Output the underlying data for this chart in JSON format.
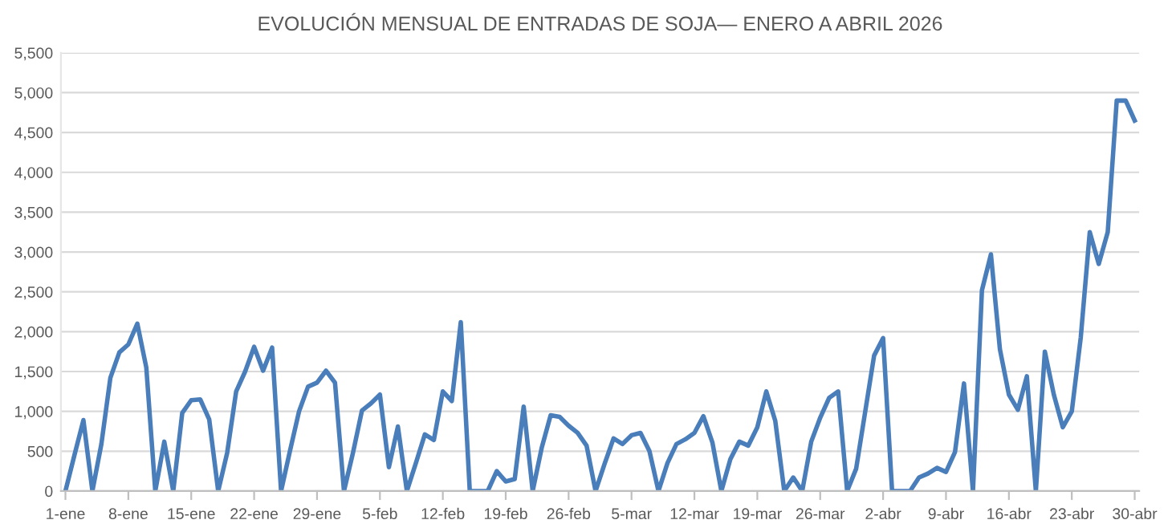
{
  "chart_data": {
    "type": "line",
    "title": "EVOLUCIÓN MENSUAL DE ENTRADAS DE SOJA— ENERO A ABRIL 2026",
    "x": [
      "2026-01-01",
      "2026-01-02",
      "2026-01-03",
      "2026-01-04",
      "2026-01-05",
      "2026-01-06",
      "2026-01-07",
      "2026-01-08",
      "2026-01-09",
      "2026-01-10",
      "2026-01-11",
      "2026-01-12",
      "2026-01-13",
      "2026-01-14",
      "2026-01-15",
      "2026-01-16",
      "2026-01-17",
      "2026-01-18",
      "2026-01-19",
      "2026-01-20",
      "2026-01-21",
      "2026-01-22",
      "2026-01-23",
      "2026-01-24",
      "2026-01-25",
      "2026-01-26",
      "2026-01-27",
      "2026-01-28",
      "2026-01-29",
      "2026-01-30",
      "2026-01-31",
      "2026-02-01",
      "2026-02-02",
      "2026-02-03",
      "2026-02-04",
      "2026-02-05",
      "2026-02-06",
      "2026-02-07",
      "2026-02-08",
      "2026-02-09",
      "2026-02-10",
      "2026-02-11",
      "2026-02-12",
      "2026-02-13",
      "2026-02-14",
      "2026-02-15",
      "2026-02-16",
      "2026-02-17",
      "2026-02-18",
      "2026-02-19",
      "2026-02-20",
      "2026-02-21",
      "2026-02-22",
      "2026-02-23",
      "2026-02-24",
      "2026-02-25",
      "2026-02-26",
      "2026-02-27",
      "2026-02-28",
      "2026-03-01",
      "2026-03-02",
      "2026-03-03",
      "2026-03-04",
      "2026-03-05",
      "2026-03-06",
      "2026-03-07",
      "2026-03-08",
      "2026-03-09",
      "2026-03-10",
      "2026-03-11",
      "2026-03-12",
      "2026-03-13",
      "2026-03-14",
      "2026-03-15",
      "2026-03-16",
      "2026-03-17",
      "2026-03-18",
      "2026-03-19",
      "2026-03-20",
      "2026-03-21",
      "2026-03-22",
      "2026-03-23",
      "2026-03-24",
      "2026-03-25",
      "2026-03-26",
      "2026-03-27",
      "2026-03-28",
      "2026-03-29",
      "2026-03-30",
      "2026-03-31",
      "2026-04-01",
      "2026-04-02",
      "2026-04-03",
      "2026-04-04",
      "2026-04-05",
      "2026-04-06",
      "2026-04-07",
      "2026-04-08",
      "2026-04-09",
      "2026-04-10",
      "2026-04-11",
      "2026-04-12",
      "2026-04-13",
      "2026-04-14",
      "2026-04-15",
      "2026-04-16",
      "2026-04-17",
      "2026-04-18",
      "2026-04-19",
      "2026-04-20",
      "2026-04-21",
      "2026-04-22",
      "2026-04-23",
      "2026-04-24",
      "2026-04-25",
      "2026-04-26",
      "2026-04-27",
      "2026-04-28",
      "2026-04-29",
      "2026-04-30"
    ],
    "series": [
      {
        "color": "#4a7ebb",
        "values": [
          0,
          450,
          890,
          0,
          590,
          1420,
          1740,
          1840,
          2100,
          1550,
          0,
          620,
          0,
          980,
          1140,
          1150,
          900,
          0,
          480,
          1250,
          1500,
          1810,
          1510,
          1800,
          0,
          510,
          1000,
          1310,
          1360,
          1510,
          1360,
          0,
          480,
          1010,
          1100,
          1210,
          300,
          810,
          0,
          350,
          710,
          640,
          1250,
          1130,
          2120,
          0,
          0,
          0,
          250,
          120,
          150,
          1060,
          0,
          540,
          950,
          930,
          820,
          730,
          570,
          0,
          340,
          660,
          590,
          700,
          730,
          500,
          0,
          350,
          590,
          650,
          730,
          940,
          610,
          0,
          400,
          620,
          570,
          800,
          1250,
          880,
          0,
          170,
          0,
          620,
          920,
          1170,
          1250,
          0,
          280,
          990,
          1700,
          1920,
          0,
          0,
          0,
          170,
          220,
          290,
          240,
          490,
          1350,
          0,
          2520,
          2970,
          1780,
          1210,
          1020,
          1440,
          0,
          1750,
          1210,
          800,
          1000,
          1930,
          3250,
          2850,
          3250,
          4900,
          4900,
          4650
        ]
      }
    ],
    "xlim": [
      "2025-12-31T12:00",
      "2026-04-30T12:00"
    ],
    "xticks": [
      {
        "value": "2026-01-01",
        "label": "1-ene"
      },
      {
        "value": "2026-01-08",
        "label": "8-ene"
      },
      {
        "value": "2026-01-15",
        "label": "15-ene"
      },
      {
        "value": "2026-01-22",
        "label": "22-ene"
      },
      {
        "value": "2026-01-29",
        "label": "29-ene"
      },
      {
        "value": "2026-02-05",
        "label": "5-feb"
      },
      {
        "value": "2026-02-12",
        "label": "12-feb"
      },
      {
        "value": "2026-02-19",
        "label": "19-feb"
      },
      {
        "value": "2026-02-26",
        "label": "26-feb"
      },
      {
        "value": "2026-03-05",
        "label": "5-mar"
      },
      {
        "value": "2026-03-12",
        "label": "12-mar"
      },
      {
        "value": "2026-03-19",
        "label": "19-mar"
      },
      {
        "value": "2026-03-26",
        "label": "26-mar"
      },
      {
        "value": "2026-04-02",
        "label": "2-abr"
      },
      {
        "value": "2026-04-09",
        "label": "9-abr"
      },
      {
        "value": "2026-04-16",
        "label": "16-abr"
      },
      {
        "value": "2026-04-23",
        "label": "23-abr"
      },
      {
        "value": "2026-04-30",
        "label": "30-abr"
      }
    ],
    "ylim": [
      0,
      5500
    ],
    "yticks": [
      0,
      {
        "value": 500,
        "label": "500"
      },
      {
        "value": 1000,
        "label": "1,000"
      },
      {
        "value": 1500,
        "label": "1,500"
      },
      {
        "value": 2000,
        "label": "2,000"
      },
      {
        "value": 2500,
        "label": "2,500"
      },
      {
        "value": 3000,
        "label": "3,000"
      },
      {
        "value": 3500,
        "label": "3,500"
      },
      {
        "value": 4000,
        "label": "4,000"
      },
      {
        "value": 4500,
        "label": "4,500"
      },
      {
        "value": 5000,
        "label": "5,000"
      },
      {
        "value": 5500,
        "label": "5,500"
      }
    ],
    "grid": "y",
    "marker": "none",
    "line_style": "solid"
  }
}
